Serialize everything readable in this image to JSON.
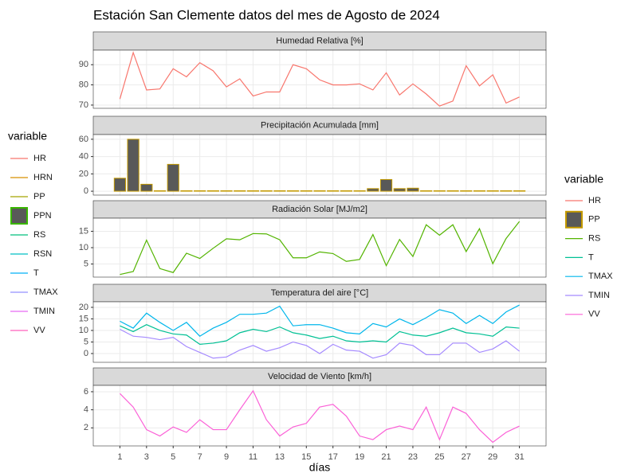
{
  "title": "Estación San Clemente datos del mes de Agosto de 2024",
  "x_label": "días",
  "legends": [
    {
      "title": "variable",
      "items": [
        {
          "name": "HR",
          "color": "#F8766D"
        },
        {
          "name": "HRN",
          "color": "#D89000"
        },
        {
          "name": "PP",
          "color": "#A3A500"
        },
        {
          "name": "PPN",
          "color": "#39B600",
          "key": "box"
        },
        {
          "name": "RS",
          "color": "#00BF7D"
        },
        {
          "name": "RSN",
          "color": "#00BFC4"
        },
        {
          "name": "T",
          "color": "#00B0F6"
        },
        {
          "name": "TMAX",
          "color": "#9590FF"
        },
        {
          "name": "TMIN",
          "color": "#E76BF3"
        },
        {
          "name": "VV",
          "color": "#FF62BC"
        }
      ]
    },
    {
      "title": "variable"
    }
  ],
  "chart_data": [
    {
      "type": "line",
      "title": "Humedad Relativa [%]",
      "x": [
        1,
        2,
        3,
        4,
        5,
        6,
        7,
        8,
        9,
        10,
        11,
        12,
        13,
        14,
        15,
        16,
        17,
        18,
        19,
        20,
        21,
        22,
        23,
        24,
        25,
        26,
        27,
        28,
        29,
        30,
        31
      ],
      "xlim": [
        -1,
        33
      ],
      "xticks": [
        1,
        3,
        5,
        7,
        9,
        11,
        13,
        15,
        17,
        19,
        21,
        23,
        25,
        27,
        29,
        31
      ],
      "ylim": [
        68.4,
        97.2
      ],
      "yticks": [
        70,
        80,
        90
      ],
      "grid": true,
      "series": [
        {
          "name": "HR",
          "color": "#F8766D",
          "values": [
            73,
            96,
            77.5,
            78,
            88,
            84,
            91,
            87,
            79,
            83,
            74.5,
            76.5,
            76.5,
            90,
            88,
            82.5,
            80,
            80,
            80.5,
            77.5,
            86,
            75,
            80.5,
            75.5,
            69.5,
            72,
            89.5,
            79.5,
            85,
            71,
            74
          ]
        }
      ]
    },
    {
      "type": "bar",
      "title": "Precipitación Acumulada [mm]",
      "x": [
        1,
        2,
        3,
        4,
        5,
        6,
        7,
        8,
        9,
        10,
        11,
        12,
        13,
        14,
        15,
        16,
        17,
        18,
        19,
        20,
        21,
        22,
        23,
        24,
        25,
        26,
        27,
        28,
        29,
        30,
        31
      ],
      "xlim": [
        -1,
        33
      ],
      "xticks": [
        1,
        3,
        5,
        7,
        9,
        11,
        13,
        15,
        17,
        19,
        21,
        23,
        25,
        27,
        29,
        31
      ],
      "ylim": [
        -4.5,
        65.4
      ],
      "yticks": [
        0,
        20,
        40,
        60
      ],
      "grid": true,
      "series": [
        {
          "name": "PP",
          "color": "#C49A00",
          "fill": "#595959",
          "key": "box",
          "values": [
            15,
            60,
            8,
            0.5,
            31,
            0.5,
            0.5,
            0.5,
            0.5,
            0.5,
            0.5,
            0.5,
            0.5,
            0.5,
            0.5,
            0.5,
            0.5,
            0.5,
            0.5,
            3,
            13.5,
            3,
            3.5,
            0.5,
            0.5,
            0.5,
            0.5,
            0.5,
            0.5,
            0.5,
            0.5
          ]
        }
      ]
    },
    {
      "type": "line",
      "title": "Radiación Solar [MJ/m2]",
      "x": [
        1,
        2,
        3,
        4,
        5,
        6,
        7,
        8,
        9,
        10,
        11,
        12,
        13,
        14,
        15,
        16,
        17,
        18,
        19,
        20,
        21,
        22,
        23,
        24,
        25,
        26,
        27,
        28,
        29,
        30,
        31
      ],
      "xlim": [
        -1,
        33
      ],
      "xticks": [
        1,
        3,
        5,
        7,
        9,
        11,
        13,
        15,
        17,
        19,
        21,
        23,
        25,
        27,
        29,
        31
      ],
      "ylim": [
        1.0,
        19.0
      ],
      "yticks": [
        5,
        10,
        15
      ],
      "grid": true,
      "series": [
        {
          "name": "RS",
          "color": "#53B400",
          "values": [
            1.8,
            2.7,
            12.3,
            3.6,
            2.4,
            8.3,
            6.7,
            9.8,
            12.7,
            12.4,
            14.3,
            14.2,
            12.4,
            6.9,
            6.9,
            8.7,
            8.2,
            5.8,
            6.4,
            14,
            4.5,
            12.5,
            7.3,
            17,
            13.8,
            17,
            8.8,
            15.8,
            5.1,
            12.8,
            18
          ]
        }
      ]
    },
    {
      "type": "line",
      "title": "Temperatura del aire [°C]",
      "x": [
        1,
        2,
        3,
        4,
        5,
        6,
        7,
        8,
        9,
        10,
        11,
        12,
        13,
        14,
        15,
        16,
        17,
        18,
        19,
        20,
        21,
        22,
        23,
        24,
        25,
        26,
        27,
        28,
        29,
        30,
        31
      ],
      "xlim": [
        -1,
        33
      ],
      "xticks": [
        1,
        3,
        5,
        7,
        9,
        11,
        13,
        15,
        17,
        19,
        21,
        23,
        25,
        27,
        29,
        31
      ],
      "ylim": [
        -3.8,
        22.4
      ],
      "yticks": [
        0,
        5,
        10,
        15,
        20
      ],
      "grid": true,
      "series": [
        {
          "name": "T",
          "color": "#00C094",
          "values": [
            12,
            9.5,
            12.5,
            10,
            8.5,
            8,
            4,
            4.5,
            5.5,
            9,
            10.5,
            9.5,
            11.5,
            9,
            8,
            6.5,
            7.5,
            5.5,
            5,
            5.5,
            5,
            9.5,
            8,
            7.5,
            9,
            11,
            9,
            8.5,
            7.5,
            11.5,
            11
          ]
        },
        {
          "name": "TMAX",
          "color": "#00B6EB",
          "values": [
            14,
            11,
            17.5,
            13.5,
            10,
            13.5,
            7.5,
            11,
            13.5,
            17,
            17,
            17.5,
            20.5,
            12,
            12.5,
            12.5,
            11,
            9,
            8.5,
            13,
            11.5,
            15,
            12.5,
            15.5,
            19,
            17.5,
            13,
            16.5,
            13,
            18,
            21
          ]
        },
        {
          "name": "TMIN",
          "color": "#A58AFF",
          "values": [
            10.5,
            7.5,
            7,
            6,
            7,
            3,
            0.5,
            -2,
            -1.5,
            1.5,
            3.5,
            1,
            2.5,
            5,
            3.5,
            0,
            4,
            1.5,
            1,
            -2,
            -0.5,
            4.5,
            3.5,
            -0.5,
            -0.5,
            4.5,
            4.5,
            0.5,
            2,
            5.5,
            1
          ]
        }
      ]
    },
    {
      "type": "line",
      "title": "Velocidad de Viento [km/h]",
      "x": [
        1,
        2,
        3,
        4,
        5,
        6,
        7,
        8,
        9,
        10,
        11,
        12,
        13,
        14,
        15,
        16,
        17,
        18,
        19,
        20,
        21,
        22,
        23,
        24,
        25,
        26,
        27,
        28,
        29,
        30,
        31
      ],
      "xlim": [
        -1,
        33
      ],
      "xticks": [
        1,
        3,
        5,
        7,
        9,
        11,
        13,
        15,
        17,
        19,
        21,
        23,
        25,
        27,
        29,
        31
      ],
      "ylim": [
        0,
        6.7
      ],
      "yticks": [
        2,
        4,
        6
      ],
      "grid": true,
      "series": [
        {
          "name": "VV",
          "color": "#FB61D7",
          "values": [
            5.8,
            4.3,
            1.8,
            1.1,
            2.1,
            1.5,
            2.9,
            1.8,
            1.8,
            4,
            6.1,
            2.9,
            1.1,
            2.1,
            2.5,
            4.3,
            4.6,
            3.3,
            1.1,
            0.7,
            1.8,
            2.2,
            1.8,
            4.3,
            0.7,
            4.3,
            3.6,
            1.8,
            0.4,
            1.5,
            2.2
          ]
        }
      ]
    }
  ]
}
